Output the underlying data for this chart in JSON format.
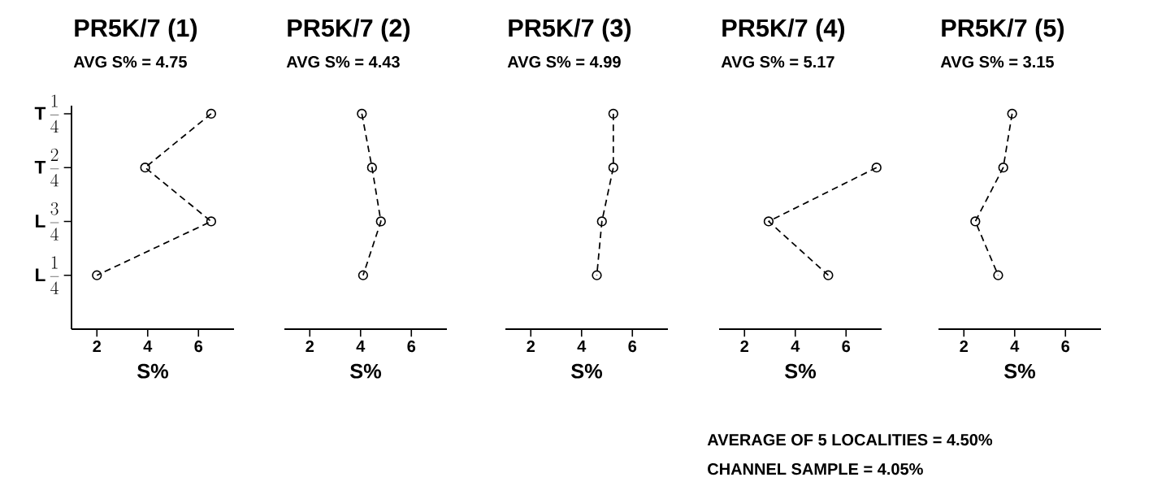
{
  "chart_data": [
    {
      "type": "line",
      "orientation": "horizontal",
      "title": "PR5K/7 (1)",
      "subtitle": "AVG S% = 4.75",
      "xlabel": "S%",
      "categories": [
        "\\mathbf{T}\\,\\frac{1}{4}",
        "\\mathbf{T}\\,\\frac{2}{4}",
        "\\mathbf{L}\\,\\frac{3}{4}",
        "\\mathbf{L}\\,\\frac{1}{4}"
      ],
      "values": [
        6.5,
        3.9,
        6.5,
        2.0
      ],
      "color": "#000000",
      "xlim": [
        1,
        7.4
      ],
      "xticks": [
        2,
        4,
        6
      ],
      "marker": "circle",
      "line_style": "dashed"
    },
    {
      "type": "line",
      "orientation": "horizontal",
      "title": "PR5K/7 (2)",
      "subtitle": "AVG S% = 4.43",
      "xlabel": "S%",
      "categories": [
        null,
        null,
        null,
        null
      ],
      "values": [
        4.05,
        4.45,
        4.8,
        4.1
      ],
      "color": "#000000",
      "xlim": [
        1,
        7.4
      ],
      "xticks": [
        2,
        4,
        6
      ],
      "marker": "circle",
      "line_style": "dashed",
      "tick_labels": "x"
    },
    {
      "type": "line",
      "orientation": "horizontal",
      "title": "PR5K/7 (3)",
      "subtitle": "AVG S% = 4.99",
      "xlabel": "S%",
      "categories": [
        null,
        null,
        null,
        null
      ],
      "values": [
        5.25,
        5.25,
        4.8,
        4.6
      ],
      "color": "#000000",
      "xlim": [
        1,
        7.4
      ],
      "xticks": [
        2,
        4,
        6
      ],
      "marker": "circle",
      "line_style": "dashed",
      "tick_labels": "x"
    },
    {
      "type": "line",
      "orientation": "horizontal",
      "title": "PR5K/7 (4)",
      "subtitle": "AVG S% = 5.17",
      "xlabel": "S%",
      "categories": [
        null,
        null,
        null,
        null
      ],
      "values": [
        null,
        7.2,
        2.95,
        5.3
      ],
      "color": "#000000",
      "xlim": [
        1,
        7.4
      ],
      "xticks": [
        2,
        4,
        6
      ],
      "marker": "circle",
      "line_style": "dashed",
      "tick_labels": "x"
    },
    {
      "type": "line",
      "orientation": "horizontal",
      "title": "PR5K/7 (5)",
      "subtitle": "AVG S% = 3.15",
      "xlabel": "S%",
      "categories": [
        null,
        null,
        null,
        null
      ],
      "values": [
        3.9,
        3.55,
        2.45,
        3.35
      ],
      "color": "#000000",
      "xlim": [
        1,
        7.4
      ],
      "xticks": [
        2,
        4,
        6
      ],
      "marker": "circle",
      "line_style": "dashed",
      "tick_labels": "x",
      "annotations": [
        "AVERAGE OF 5 LOCALITIES = 4.50%",
        "CHANNEL SAMPLE = 4.05%"
      ]
    }
  ]
}
